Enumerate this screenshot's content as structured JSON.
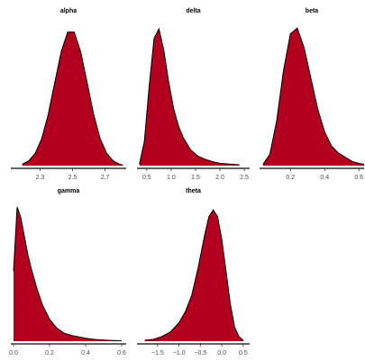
{
  "chart_data": [
    {
      "type": "area",
      "title": "alpha",
      "color": "#b2001e",
      "x": [
        2.19,
        2.23,
        2.27,
        2.31,
        2.35,
        2.39,
        2.43,
        2.47,
        2.51,
        2.55,
        2.59,
        2.63,
        2.67,
        2.71,
        2.75,
        2.79,
        2.81
      ],
      "values": [
        0.04,
        0.14,
        0.36,
        0.79,
        1.5,
        2.43,
        3.34,
        3.92,
        3.92,
        3.34,
        2.43,
        1.5,
        0.79,
        0.36,
        0.14,
        0.04,
        0.02
      ],
      "xlim": [
        2.12,
        2.83
      ],
      "ylim": [
        0,
        4.2
      ],
      "xticks": [
        2.3,
        2.5,
        2.7
      ]
    },
    {
      "type": "area",
      "title": "delta",
      "color": "#b2001e",
      "x": [
        0.35,
        0.45,
        0.55,
        0.65,
        0.75,
        0.85,
        0.95,
        1.05,
        1.15,
        1.25,
        1.4,
        1.55,
        1.7,
        1.85,
        2.0,
        2.2,
        2.4
      ],
      "values": [
        0.02,
        0.3,
        1.0,
        1.6,
        1.72,
        1.45,
        1.05,
        0.72,
        0.5,
        0.35,
        0.2,
        0.12,
        0.08,
        0.05,
        0.03,
        0.02,
        0.01
      ],
      "xlim": [
        0.3,
        2.61
      ],
      "ylim": [
        0,
        1.8
      ],
      "xticks": [
        0.5,
        {
          "value": 1,
          "label": "1.0"
        },
        1.5,
        {
          "value": 2,
          "label": "2.0"
        },
        2.5
      ]
    },
    {
      "type": "area",
      "title": "beta",
      "color": "#b2001e",
      "x": [
        0.04,
        0.08,
        0.12,
        0.16,
        0.2,
        0.24,
        0.28,
        0.32,
        0.36,
        0.4,
        0.44,
        0.48,
        0.52,
        0.56,
        0.6,
        0.63
      ],
      "values": [
        0.05,
        0.4,
        1.6,
        3.4,
        4.7,
        4.9,
        4.2,
        3.1,
        2.0,
        1.2,
        0.7,
        0.45,
        0.3,
        0.15,
        0.08,
        0.05
      ],
      "xlim": [
        0.02,
        0.63
      ],
      "ylim": [
        0,
        5.1
      ],
      "xticks": [
        0.2,
        0.4,
        0.6
      ]
    },
    {
      "type": "area",
      "title": "gamma",
      "color": "#b2001e",
      "x": [
        0,
        0.02,
        0.04,
        0.06,
        0.08,
        0.1,
        0.13,
        0.16,
        0.2,
        0.24,
        0.28,
        0.32,
        0.36,
        0.4,
        0.45,
        0.5,
        0.55,
        0.6
      ],
      "values": [
        4.8,
        9.2,
        8.5,
        7.2,
        5.9,
        4.9,
        3.6,
        2.5,
        1.5,
        0.9,
        0.55,
        0.4,
        0.3,
        0.2,
        0.12,
        0.08,
        0.05,
        0.03
      ],
      "xlim": [
        -0.015,
        0.625
      ],
      "ylim": [
        0,
        9.5
      ],
      "xticks": [
        {
          "value": 0,
          "label": "0.0"
        },
        0.2,
        0.4,
        0.6
      ]
    },
    {
      "type": "area",
      "title": "theta",
      "color": "#b2001e",
      "x": [
        -1.8,
        -1.6,
        -1.4,
        -1.2,
        -1.0,
        -0.85,
        -0.7,
        -0.55,
        -0.4,
        -0.3,
        -0.2,
        -0.1,
        0,
        0.1,
        0.2,
        0.3,
        0.4,
        0.5
      ],
      "values": [
        0.01,
        0.02,
        0.05,
        0.1,
        0.2,
        0.32,
        0.5,
        0.8,
        1.15,
        1.35,
        1.42,
        1.35,
        1.1,
        0.75,
        0.4,
        0.15,
        0.05,
        0.01
      ],
      "xlim": [
        -1.98,
        0.65
      ],
      "ylim": [
        0,
        1.5
      ],
      "xticks": [
        {
          "value": -1.5,
          "label": "−1.5"
        },
        {
          "value": -1,
          "label": "−1.0"
        },
        {
          "value": -0.5,
          "label": "−0.5"
        },
        {
          "value": 0,
          "label": "0.0"
        },
        0.5
      ]
    }
  ]
}
